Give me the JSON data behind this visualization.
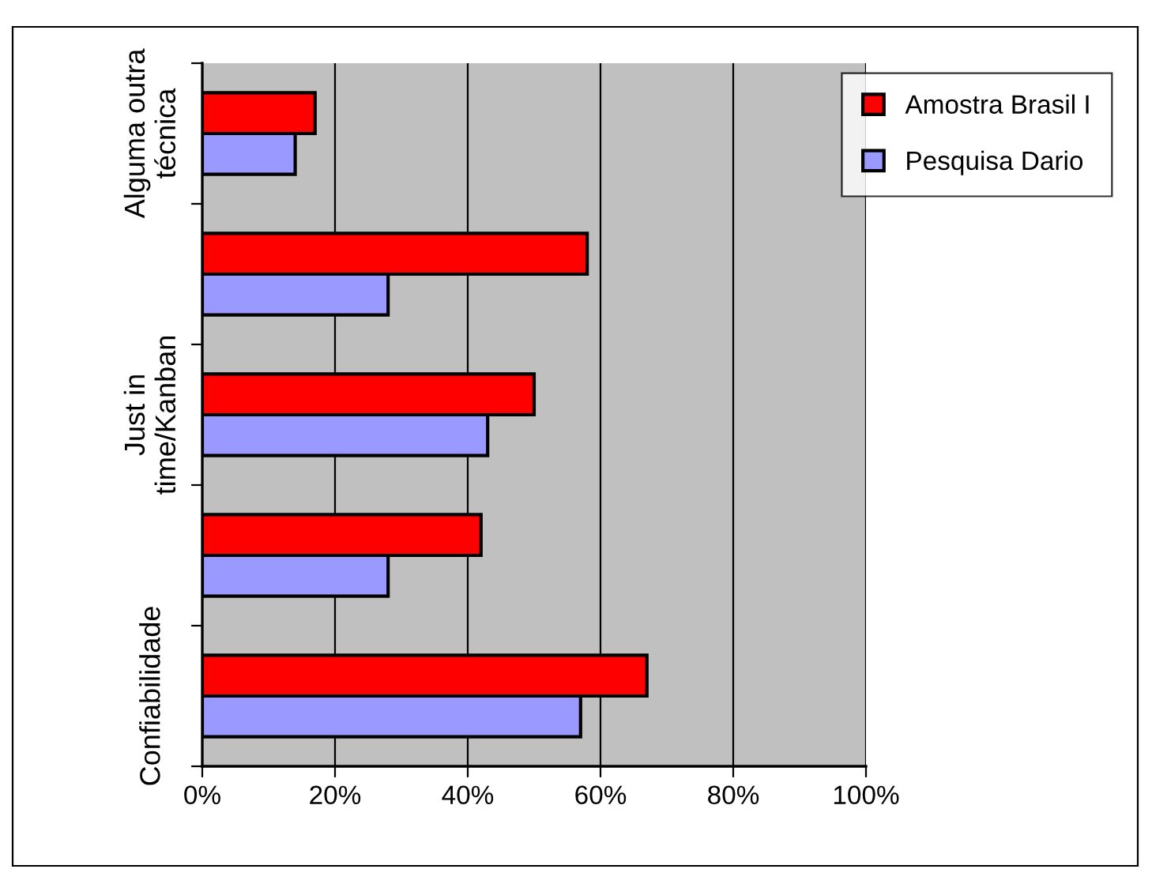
{
  "chart_data": {
    "type": "bar",
    "orientation": "horizontal",
    "categories": [
      "Alguma outra\ntécnica",
      null,
      "Just in\ntime/Kanban",
      null,
      "Confiabilidade"
    ],
    "series": [
      {
        "name": "Amostra Brasil I",
        "color": "#ff0000",
        "values": [
          17,
          58,
          50,
          42,
          67
        ]
      },
      {
        "name": "Pesquisa Dario",
        "color": "#9999ff",
        "values": [
          14,
          28,
          43,
          28,
          57
        ]
      }
    ],
    "xlim": [
      0,
      100
    ],
    "xticks": [
      {
        "value": 0,
        "label": "0%"
      },
      {
        "value": 20,
        "label": "20%"
      },
      {
        "value": 40,
        "label": "40%"
      },
      {
        "value": 60,
        "label": "60%"
      },
      {
        "value": 80,
        "label": "80%"
      },
      {
        "value": 100,
        "label": "100%"
      }
    ],
    "grid": "x",
    "legend": "top right"
  }
}
